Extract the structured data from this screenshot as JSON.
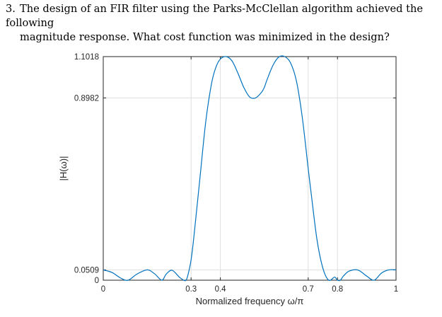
{
  "question": {
    "number": "3.",
    "line1": "The design of an FIR filter using the Parks-McClellan algorithm achieved the following",
    "line2": "magnitude response. What cost function was minimized in the design?"
  },
  "chart_data": {
    "type": "line",
    "title": "",
    "xlabel": "Normalized frequency ω/π",
    "ylabel": "|H(ω)|",
    "xlim": [
      0,
      1
    ],
    "ylim": [
      0,
      1.1018
    ],
    "xticks": [
      0,
      0.3,
      0.4,
      0.7,
      0.8,
      1
    ],
    "xtick_labels": [
      "0",
      "0.3",
      "0.4",
      "0.7",
      "0.8",
      "1"
    ],
    "yticks": [
      0,
      0.0509,
      0.8982,
      1.1018
    ],
    "ytick_labels": [
      "0",
      "0.0509",
      "0.8982",
      "1.1018"
    ],
    "grid": true,
    "line_color": "#0072BD",
    "series": [
      {
        "x": [
          0,
          0.03,
          0.06,
          0.085,
          0.115,
          0.15,
          0.175,
          0.2,
          0.215,
          0.235,
          0.26,
          0.275,
          0.283,
          0.29,
          0.3,
          0.31,
          0.33,
          0.35,
          0.37,
          0.385,
          0.4,
          0.42,
          0.44,
          0.46,
          0.48,
          0.5,
          0.52,
          0.54,
          0.55,
          0.56,
          0.58,
          0.6,
          0.62,
          0.64,
          0.66,
          0.68,
          0.7,
          0.71,
          0.73,
          0.75,
          0.77,
          0.79,
          0.8,
          0.81,
          0.82,
          0.84,
          0.87,
          0.9,
          0.925,
          0.95,
          0.975,
          1
        ],
        "y": [
          0.0509,
          0.038,
          0.01,
          0.0,
          0.03,
          0.0509,
          0.032,
          0.0,
          0.03,
          0.049,
          0.015,
          0.0,
          0.0,
          0.03,
          0.1,
          0.22,
          0.5,
          0.78,
          0.97,
          1.05,
          1.09,
          1.1018,
          1.08,
          1.02,
          0.95,
          0.903,
          0.8982,
          0.925,
          0.95,
          0.99,
          1.06,
          1.1,
          1.1018,
          1.07,
          0.98,
          0.8,
          0.55,
          0.43,
          0.2,
          0.06,
          0.0,
          0.015,
          0.0,
          0.0,
          0.02,
          0.045,
          0.05,
          0.02,
          0.0,
          0.035,
          0.0509,
          0.0509
        ]
      }
    ]
  }
}
